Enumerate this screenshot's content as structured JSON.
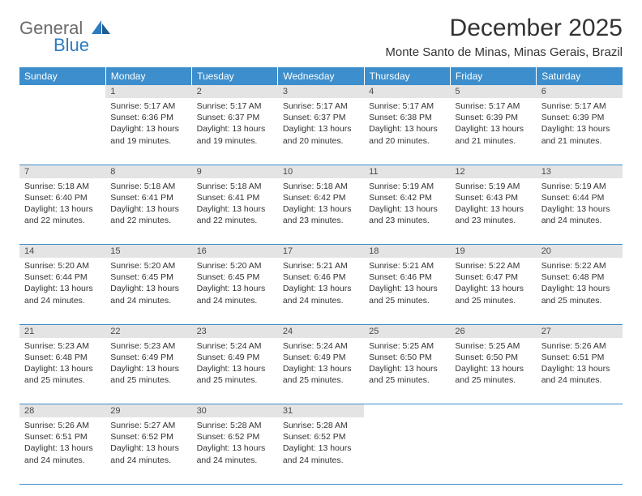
{
  "logo": {
    "line1": "General",
    "line2": "Blue"
  },
  "title": "December 2025",
  "location": "Monte Santo de Minas, Minas Gerais, Brazil",
  "colors": {
    "header_bg": "#3c8ecc",
    "header_text": "#ffffff",
    "daynum_bg": "#e4e4e4",
    "row_divider": "#3c8ecc",
    "body_text": "#333333",
    "logo_gray": "#6a6a6a",
    "logo_blue": "#2f7bbf"
  },
  "weekdays": [
    "Sunday",
    "Monday",
    "Tuesday",
    "Wednesday",
    "Thursday",
    "Friday",
    "Saturday"
  ],
  "weeks": [
    {
      "nums": [
        "",
        "1",
        "2",
        "3",
        "4",
        "5",
        "6"
      ],
      "cells": [
        null,
        {
          "sunrise": "5:17 AM",
          "sunset": "6:36 PM",
          "dl": "13 hours and 19 minutes."
        },
        {
          "sunrise": "5:17 AM",
          "sunset": "6:37 PM",
          "dl": "13 hours and 19 minutes."
        },
        {
          "sunrise": "5:17 AM",
          "sunset": "6:37 PM",
          "dl": "13 hours and 20 minutes."
        },
        {
          "sunrise": "5:17 AM",
          "sunset": "6:38 PM",
          "dl": "13 hours and 20 minutes."
        },
        {
          "sunrise": "5:17 AM",
          "sunset": "6:39 PM",
          "dl": "13 hours and 21 minutes."
        },
        {
          "sunrise": "5:17 AM",
          "sunset": "6:39 PM",
          "dl": "13 hours and 21 minutes."
        }
      ]
    },
    {
      "nums": [
        "7",
        "8",
        "9",
        "10",
        "11",
        "12",
        "13"
      ],
      "cells": [
        {
          "sunrise": "5:18 AM",
          "sunset": "6:40 PM",
          "dl": "13 hours and 22 minutes."
        },
        {
          "sunrise": "5:18 AM",
          "sunset": "6:41 PM",
          "dl": "13 hours and 22 minutes."
        },
        {
          "sunrise": "5:18 AM",
          "sunset": "6:41 PM",
          "dl": "13 hours and 22 minutes."
        },
        {
          "sunrise": "5:18 AM",
          "sunset": "6:42 PM",
          "dl": "13 hours and 23 minutes."
        },
        {
          "sunrise": "5:19 AM",
          "sunset": "6:42 PM",
          "dl": "13 hours and 23 minutes."
        },
        {
          "sunrise": "5:19 AM",
          "sunset": "6:43 PM",
          "dl": "13 hours and 23 minutes."
        },
        {
          "sunrise": "5:19 AM",
          "sunset": "6:44 PM",
          "dl": "13 hours and 24 minutes."
        }
      ]
    },
    {
      "nums": [
        "14",
        "15",
        "16",
        "17",
        "18",
        "19",
        "20"
      ],
      "cells": [
        {
          "sunrise": "5:20 AM",
          "sunset": "6:44 PM",
          "dl": "13 hours and 24 minutes."
        },
        {
          "sunrise": "5:20 AM",
          "sunset": "6:45 PM",
          "dl": "13 hours and 24 minutes."
        },
        {
          "sunrise": "5:20 AM",
          "sunset": "6:45 PM",
          "dl": "13 hours and 24 minutes."
        },
        {
          "sunrise": "5:21 AM",
          "sunset": "6:46 PM",
          "dl": "13 hours and 24 minutes."
        },
        {
          "sunrise": "5:21 AM",
          "sunset": "6:46 PM",
          "dl": "13 hours and 25 minutes."
        },
        {
          "sunrise": "5:22 AM",
          "sunset": "6:47 PM",
          "dl": "13 hours and 25 minutes."
        },
        {
          "sunrise": "5:22 AM",
          "sunset": "6:48 PM",
          "dl": "13 hours and 25 minutes."
        }
      ]
    },
    {
      "nums": [
        "21",
        "22",
        "23",
        "24",
        "25",
        "26",
        "27"
      ],
      "cells": [
        {
          "sunrise": "5:23 AM",
          "sunset": "6:48 PM",
          "dl": "13 hours and 25 minutes."
        },
        {
          "sunrise": "5:23 AM",
          "sunset": "6:49 PM",
          "dl": "13 hours and 25 minutes."
        },
        {
          "sunrise": "5:24 AM",
          "sunset": "6:49 PM",
          "dl": "13 hours and 25 minutes."
        },
        {
          "sunrise": "5:24 AM",
          "sunset": "6:49 PM",
          "dl": "13 hours and 25 minutes."
        },
        {
          "sunrise": "5:25 AM",
          "sunset": "6:50 PM",
          "dl": "13 hours and 25 minutes."
        },
        {
          "sunrise": "5:25 AM",
          "sunset": "6:50 PM",
          "dl": "13 hours and 25 minutes."
        },
        {
          "sunrise": "5:26 AM",
          "sunset": "6:51 PM",
          "dl": "13 hours and 24 minutes."
        }
      ]
    },
    {
      "nums": [
        "28",
        "29",
        "30",
        "31",
        "",
        "",
        ""
      ],
      "cells": [
        {
          "sunrise": "5:26 AM",
          "sunset": "6:51 PM",
          "dl": "13 hours and 24 minutes."
        },
        {
          "sunrise": "5:27 AM",
          "sunset": "6:52 PM",
          "dl": "13 hours and 24 minutes."
        },
        {
          "sunrise": "5:28 AM",
          "sunset": "6:52 PM",
          "dl": "13 hours and 24 minutes."
        },
        {
          "sunrise": "5:28 AM",
          "sunset": "6:52 PM",
          "dl": "13 hours and 24 minutes."
        },
        null,
        null,
        null
      ]
    }
  ],
  "labels": {
    "sunrise": "Sunrise:",
    "sunset": "Sunset:",
    "daylight": "Daylight:"
  }
}
